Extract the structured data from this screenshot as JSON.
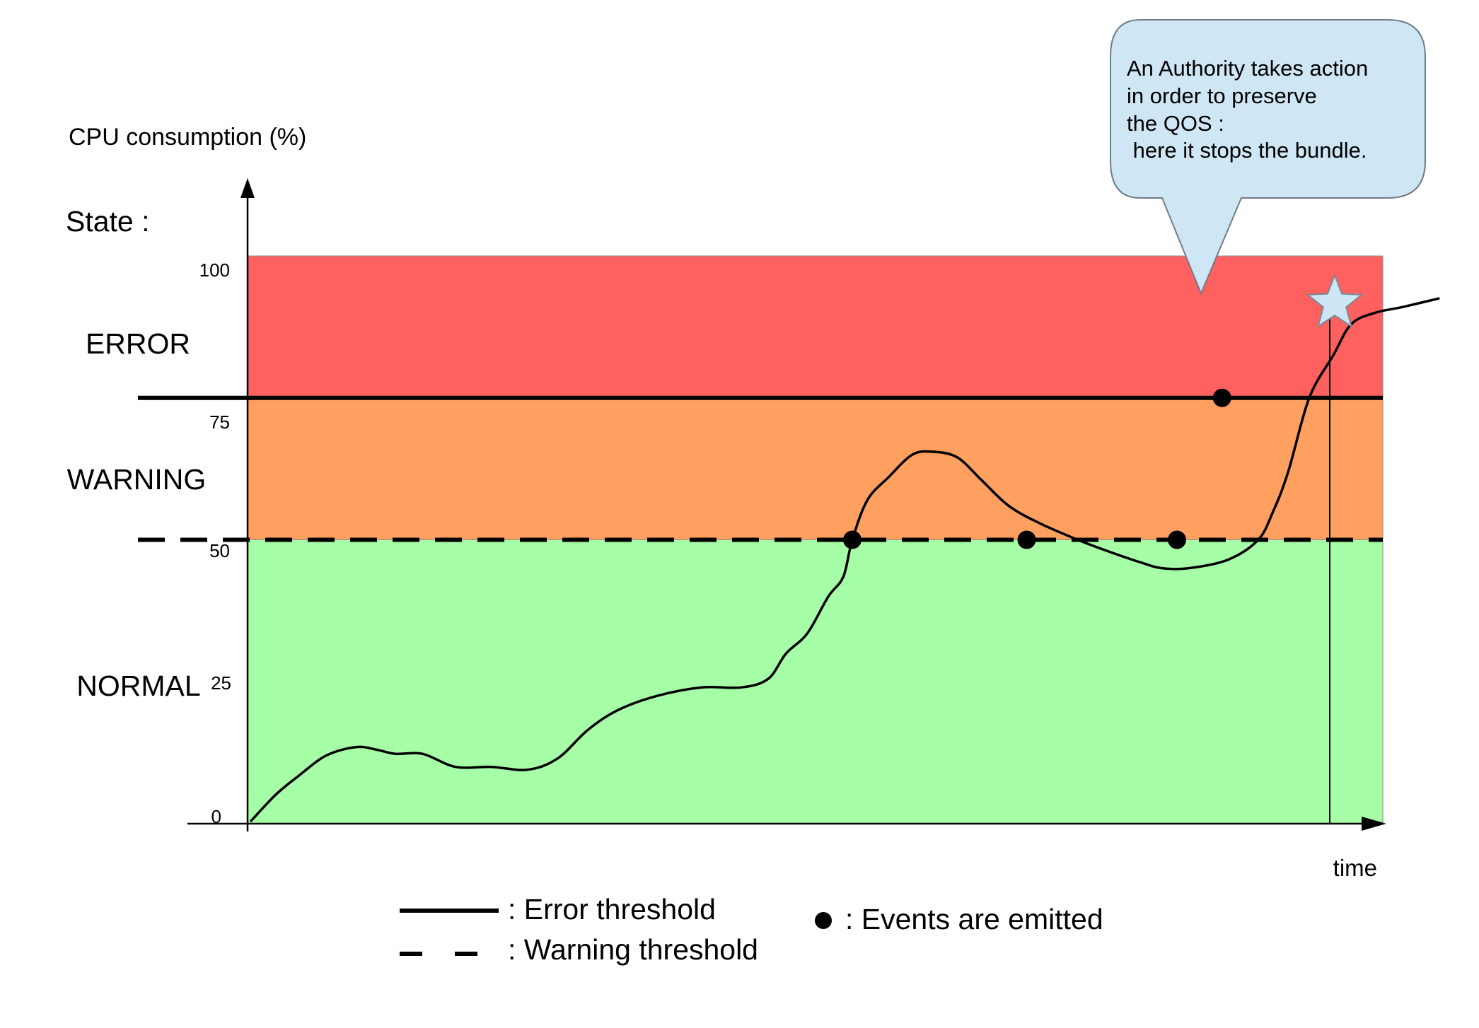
{
  "axes": {
    "y_label": "CPU consumption (%)",
    "x_label": "time",
    "state_label": "State :",
    "y_ticks": [
      "0",
      "25",
      "50",
      "75",
      "100"
    ]
  },
  "states": [
    {
      "label": "ERROR",
      "from": 75,
      "to": 100,
      "color": "#ff6060"
    },
    {
      "label": "WARNING",
      "from": 50,
      "to": 75,
      "color": "#ff9f60"
    },
    {
      "label": "NORMAL",
      "from": 0,
      "to": 50,
      "color": "#a6ffa6"
    }
  ],
  "thresholds": {
    "error": 75,
    "warning": 50
  },
  "curve_points": [
    [
      0,
      0.5
    ],
    [
      8,
      5
    ],
    [
      16,
      8.5
    ],
    [
      25,
      12
    ],
    [
      35,
      13.5
    ],
    [
      42,
      13
    ],
    [
      48,
      12.3
    ],
    [
      57,
      12.3
    ],
    [
      68,
      10
    ],
    [
      80,
      10
    ],
    [
      92,
      9.5
    ],
    [
      102,
      11.5
    ],
    [
      112,
      16.5
    ],
    [
      122,
      20
    ],
    [
      135,
      22.5
    ],
    [
      150,
      24
    ],
    [
      163,
      24
    ],
    [
      172,
      25.5
    ],
    [
      178,
      30
    ],
    [
      185,
      33.5
    ],
    [
      192,
      40
    ],
    [
      197,
      43.5
    ],
    [
      200,
      50
    ],
    [
      205,
      57
    ],
    [
      212,
      61
    ],
    [
      220,
      65
    ],
    [
      227,
      65.5
    ],
    [
      235,
      64.5
    ],
    [
      243,
      60.5
    ],
    [
      252,
      56
    ],
    [
      262,
      53
    ],
    [
      275,
      50
    ],
    [
      285,
      48
    ],
    [
      296,
      46
    ],
    [
      303,
      45
    ],
    [
      312,
      45
    ],
    [
      325,
      46.5
    ],
    [
      335,
      50
    ],
    [
      340,
      55
    ],
    [
      345,
      62
    ],
    [
      352,
      75
    ],
    [
      360,
      82.5
    ],
    [
      366,
      88
    ],
    [
      374,
      90
    ],
    [
      383,
      91
    ],
    [
      395,
      92.5
    ]
  ],
  "events": [
    {
      "t": 200,
      "v": 50
    },
    {
      "t": 258,
      "v": 50
    },
    {
      "t": 308,
      "v": 50
    },
    {
      "t": 323,
      "v": 75
    }
  ],
  "action_point": {
    "t": 360,
    "v": 92.5
  },
  "callout": {
    "lines": [
      "An Authority takes action",
      "in order to preserve",
      "the QOS :",
      " here it stops the bundle."
    ]
  },
  "legend": {
    "error_label": ": Error threshold",
    "warning_label": ": Warning threshold",
    "events_label": ": Events are emitted"
  }
}
